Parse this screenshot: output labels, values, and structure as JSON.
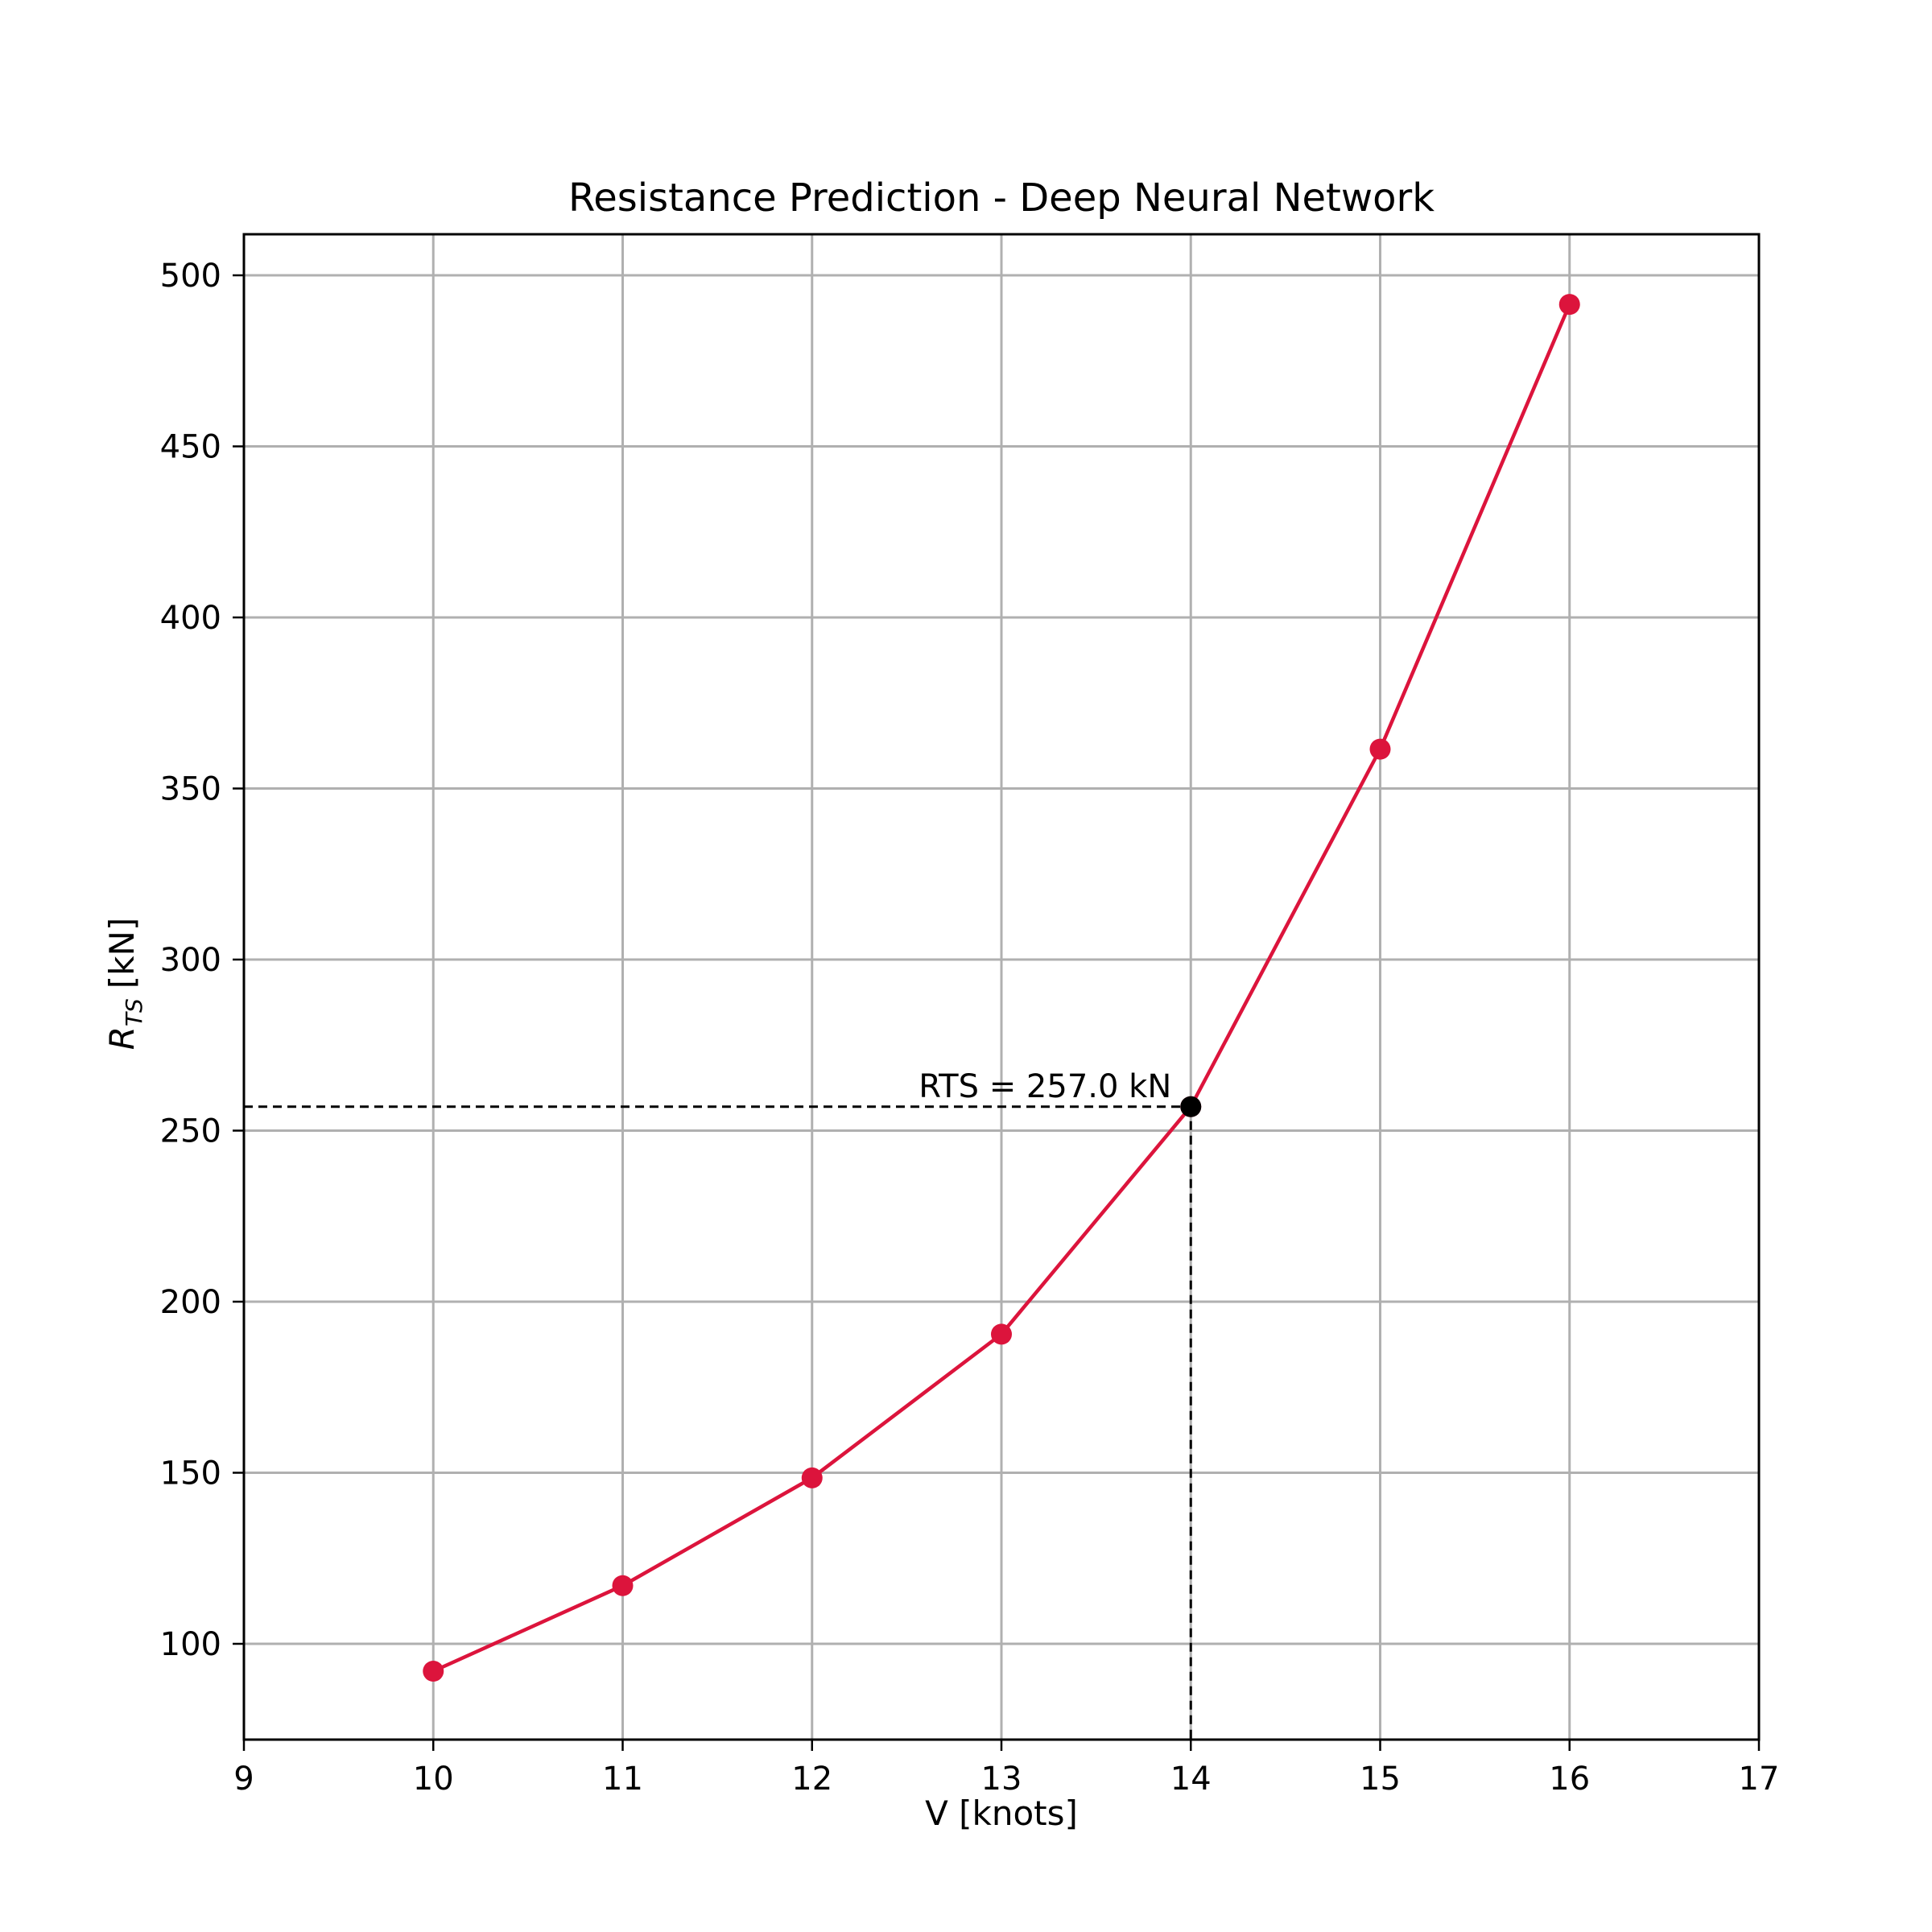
{
  "chart_data": {
    "type": "line",
    "title": "Resistance Prediction - Deep Neural Network",
    "xlabel": "V [knots]",
    "ylabel": {
      "main": "R",
      "sub": "TS",
      "unit": "[kN]"
    },
    "xlim": [
      9,
      17
    ],
    "ylim": [
      72,
      512
    ],
    "xticks": [
      9,
      10,
      11,
      12,
      13,
      14,
      15,
      16,
      17
    ],
    "yticks": [
      100,
      150,
      200,
      250,
      300,
      350,
      400,
      450,
      500
    ],
    "grid": true,
    "series": [
      {
        "x": [
          10,
          11,
          12,
          13,
          14,
          15,
          16
        ],
        "values": [
          92,
          117,
          148.5,
          190.5,
          257.0,
          361.5,
          491.5
        ],
        "color": "#dc143c",
        "marker": "circle"
      }
    ],
    "highlight": {
      "x": 14,
      "y": 257.0,
      "label": "RTS = 257.0 kN",
      "color": "#000000",
      "guide_lines": "dashed"
    }
  }
}
